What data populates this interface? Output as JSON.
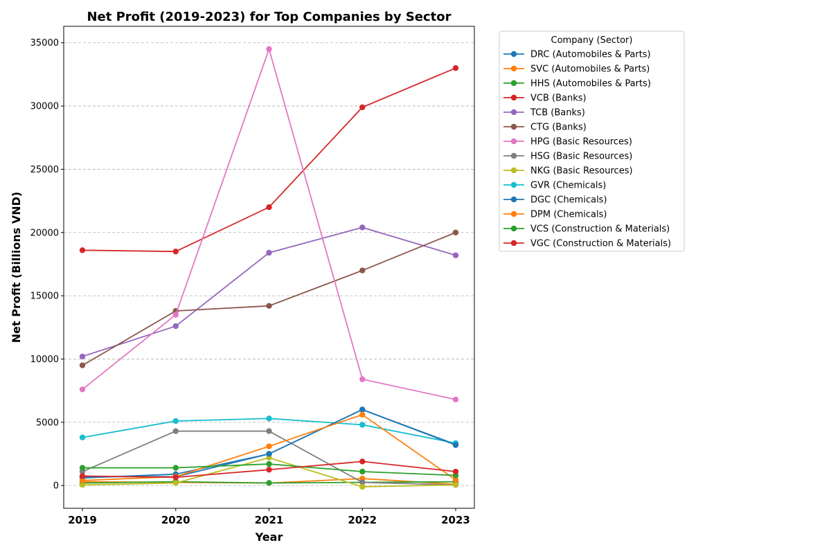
{
  "chart_data": {
    "type": "line",
    "title": "Net Profit (2019-2023) for Top Companies by Sector",
    "xlabel": "Year",
    "ylabel": "Net Profit (Billions VND)",
    "x": [
      "2019",
      "2020",
      "2021",
      "2022",
      "2023"
    ],
    "y_ticks": [
      "0",
      "5000",
      "10000",
      "15000",
      "20000",
      "25000",
      "30000",
      "35000"
    ],
    "ylim": [
      -1800,
      36300
    ],
    "grid": "y-dashed",
    "legend": {
      "title": "Company (Sector)",
      "placement": "outside-right"
    },
    "series": [
      {
        "name": "DRC (Automobiles & Parts)",
        "color": "#1f77b4",
        "values": [
          600,
          900,
          2500,
          6000,
          3250
        ]
      },
      {
        "name": "SVC (Automobiles & Parts)",
        "color": "#ff7f0e",
        "values": [
          300,
          250,
          200,
          550,
          100
        ]
      },
      {
        "name": "HHS (Automobiles & Parts)",
        "color": "#2ca02c",
        "values": [
          200,
          300,
          200,
          250,
          300
        ]
      },
      {
        "name": "VCB (Banks)",
        "color": "#d62728",
        "values": [
          18600,
          18500,
          22000,
          29900,
          33000
        ]
      },
      {
        "name": "TCB (Banks)",
        "color": "#9467bd",
        "values": [
          10200,
          12600,
          18400,
          20400,
          18200
        ]
      },
      {
        "name": "CTG (Banks)",
        "color": "#8c564b",
        "values": [
          9500,
          13800,
          14200,
          17000,
          20000
        ]
      },
      {
        "name": "HPG (Basic Resources)",
        "color": "#e377c2",
        "values": [
          7600,
          13500,
          34500,
          8400,
          6800
        ]
      },
      {
        "name": "HSG (Basic Resources)",
        "color": "#7f7f7f",
        "values": [
          1100,
          4300,
          4300,
          250,
          50
        ]
      },
      {
        "name": "NKG (Basic Resources)",
        "color": "#bcbd22",
        "values": [
          50,
          200,
          2200,
          -100,
          50
        ]
      },
      {
        "name": "GVR (Chemicals)",
        "color": "#17becf",
        "values": [
          3800,
          5100,
          5300,
          4800,
          3350
        ]
      },
      {
        "name": "DGC (Chemicals)",
        "color": "#1f77b4",
        "values": [
          700,
          700,
          2500,
          6000,
          3200
        ]
      },
      {
        "name": "DPM (Chemicals)",
        "color": "#ff7f0e",
        "values": [
          400,
          700,
          3100,
          5600,
          450
        ]
      },
      {
        "name": "VCS (Construction & Materials)",
        "color": "#2ca02c",
        "values": [
          1400,
          1400,
          1700,
          1100,
          800
        ]
      },
      {
        "name": "VGC (Construction & Materials)",
        "color": "#d62728",
        "values": [
          750,
          650,
          1250,
          1900,
          1100
        ]
      }
    ]
  }
}
